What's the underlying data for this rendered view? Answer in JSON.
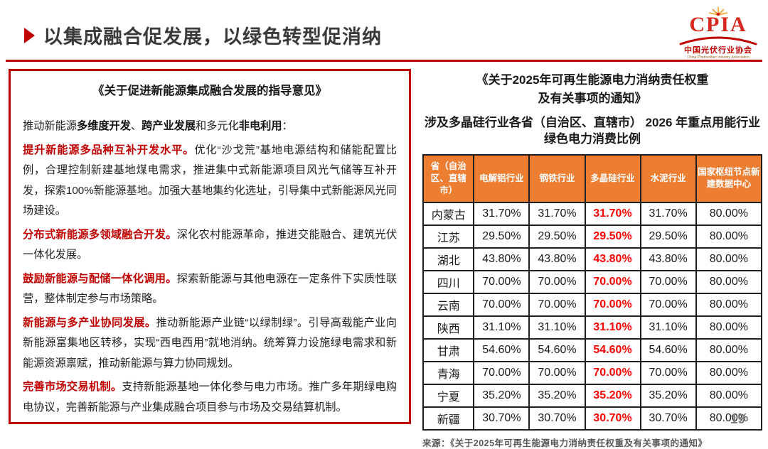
{
  "header": {
    "title": "以集成融合促发展，以绿色转型促消纳",
    "page_number": "19"
  },
  "logo": {
    "acronym": "CPIA",
    "cn_name": "中国光伏行业协会",
    "en_name": "China Photovoltaic Industry Association"
  },
  "left_panel": {
    "title": "《关于促进新能源集成融合发展的指导意见》",
    "paragraphs": [
      {
        "segments": [
          {
            "text": "推动新能源",
            "style": "n"
          },
          {
            "text": "多维度开发",
            "style": "b"
          },
          {
            "text": "、",
            "style": "n"
          },
          {
            "text": "跨产业发展",
            "style": "b"
          },
          {
            "text": "和多元化",
            "style": "n"
          },
          {
            "text": "非电利用",
            "style": "b"
          },
          {
            "text": "：",
            "style": "n"
          }
        ]
      },
      {
        "segments": [
          {
            "text": "提升新能源多品种互补开发水平。",
            "style": "r"
          },
          {
            "text": "优化“沙戈荒”基地电源结构和储能配置比例，合理控制新建基地煤电需求，推进集中式新能源项目风光气储等互补开发，探索100%新能源基地。加强大基地集约化选址，引导集中式新能源风光同场建设。",
            "style": "n"
          }
        ]
      },
      {
        "segments": [
          {
            "text": "分布式新能源多领域融合开发。",
            "style": "r"
          },
          {
            "text": "深化农村能源革命，推进交能融合、建筑光伏一体化发展。",
            "style": "n"
          }
        ]
      },
      {
        "segments": [
          {
            "text": "鼓励新能源与配储一体化调用。",
            "style": "r"
          },
          {
            "text": "探索新能源与其他电源在一定条件下实质性联营，整体制定参与市场策略。",
            "style": "n"
          }
        ]
      },
      {
        "segments": [
          {
            "text": "新能源与多产业协同发展。",
            "style": "r"
          },
          {
            "text": "推动新能源产业链“以绿制绿”。引导高载能产业向新能源富集地区转移，实现“西电西用”就地消纳。统筹算力设施绿电需求和新能源资源禀赋，推动新能源与算力协同规划。",
            "style": "n"
          }
        ]
      },
      {
        "segments": [
          {
            "text": "完善市场交易机制。",
            "style": "r"
          },
          {
            "text": "支持新能源基地一体化参与电力市场。推广多年期绿电购电协议，完善新能源与产业集成融合项目参与市场及交易结算机制。",
            "style": "n"
          }
        ]
      }
    ]
  },
  "right_panel": {
    "doc_title_line1": "《关于2025年可再生能源电力消纳责任权重",
    "doc_title_line2": "及有关事项的通知》",
    "table_title": "涉及多晶硅行业各省（自治区、直辖市） 2026 年重点用能行业绿色电力消费比例",
    "table": {
      "headers": [
        "省（自治区、直辖市）",
        "电解铝行业",
        "钢铁行业",
        "多晶硅行业",
        "水泥行业",
        "国家枢纽节点新建数据中心"
      ],
      "highlight_value_index": 2,
      "rows": [
        {
          "province": "内蒙古",
          "values": [
            "31.70%",
            "31.70%",
            "31.70%",
            "31.70%",
            "80.00%"
          ]
        },
        {
          "province": "江苏",
          "values": [
            "29.50%",
            "29.50%",
            "29.50%",
            "29.50%",
            "80.00%"
          ]
        },
        {
          "province": "湖北",
          "values": [
            "43.80%",
            "43.80%",
            "43.80%",
            "43.80%",
            "80.00%"
          ]
        },
        {
          "province": "四川",
          "values": [
            "70.00%",
            "70.00%",
            "70.00%",
            "70.00%",
            "80.00%"
          ]
        },
        {
          "province": "云南",
          "values": [
            "70.00%",
            "70.00%",
            "70.00%",
            "70.00%",
            "80.00%"
          ]
        },
        {
          "province": "陕西",
          "values": [
            "31.10%",
            "31.10%",
            "31.10%",
            "31.10%",
            "80.00%"
          ]
        },
        {
          "province": "甘肃",
          "values": [
            "54.60%",
            "54.60%",
            "54.60%",
            "54.60%",
            "80.00%"
          ]
        },
        {
          "province": "青海",
          "values": [
            "70.00%",
            "70.00%",
            "70.00%",
            "70.00%",
            "80.00%"
          ]
        },
        {
          "province": "宁夏",
          "values": [
            "35.20%",
            "35.20%",
            "35.20%",
            "35.20%",
            "80.00%"
          ]
        },
        {
          "province": "新疆",
          "values": [
            "30.70%",
            "30.70%",
            "30.70%",
            "30.70%",
            "80.00%"
          ]
        }
      ]
    },
    "source": "来源：《关于2025年可再生能源电力消纳责任权重及有关事项的通知》"
  },
  "colors": {
    "accent_red": "#c00000",
    "highlight_red": "#fe0000",
    "header_orange": "#ed7d31",
    "text_dark": "#333333",
    "gray": "#7f7f7f",
    "source_gray": "#595959"
  }
}
